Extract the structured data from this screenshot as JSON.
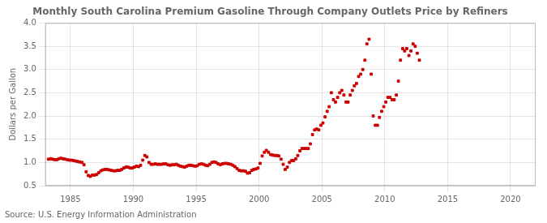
{
  "chart_data": {
    "type": "scatter",
    "title": "Monthly South Carolina Premium Gasoline Through Company Outlets Price by Refiners",
    "ylabel": "Dollars per Gallon",
    "annotation": "Source: U.S. Energy Information Administration",
    "xlim": [
      1983,
      2022
    ],
    "ylim": [
      0.5,
      4.0
    ],
    "xticks": [
      1985,
      1990,
      1995,
      2000,
      2005,
      2010,
      2015,
      2020
    ],
    "yticks": [
      0.5,
      {
        "value": 1.0,
        "label": "1.0"
      },
      1.5,
      {
        "value": 2.0,
        "label": "2.0"
      },
      2.5,
      {
        "value": 3.0,
        "label": "3.0"
      },
      3.5,
      {
        "value": 4.0,
        "label": "4.0"
      }
    ],
    "color": "#cc0000",
    "marker": "square",
    "grid": true,
    "x": [
      1983.25,
      1983.42,
      1983.58,
      1983.75,
      1983.92,
      1984.08,
      1984.25,
      1984.42,
      1984.58,
      1984.75,
      1984.92,
      1985.08,
      1985.25,
      1985.42,
      1985.58,
      1985.75,
      1985.92,
      1986.08,
      1986.25,
      1986.42,
      1986.58,
      1986.75,
      1986.92,
      1987.08,
      1987.25,
      1987.42,
      1987.58,
      1987.75,
      1987.92,
      1988.08,
      1988.25,
      1988.42,
      1988.58,
      1988.75,
      1988.92,
      1989.08,
      1989.25,
      1989.42,
      1989.58,
      1989.75,
      1989.92,
      1990.08,
      1990.25,
      1990.42,
      1990.58,
      1990.75,
      1990.92,
      1991.08,
      1991.25,
      1991.42,
      1991.58,
      1991.75,
      1991.92,
      1992.08,
      1992.25,
      1992.42,
      1992.58,
      1992.75,
      1992.92,
      1993.08,
      1993.25,
      1993.42,
      1993.58,
      1993.75,
      1993.92,
      1994.08,
      1994.25,
      1994.42,
      1994.58,
      1994.75,
      1994.92,
      1995.08,
      1995.25,
      1995.42,
      1995.58,
      1995.75,
      1995.92,
      1996.08,
      1996.25,
      1996.42,
      1996.58,
      1996.75,
      1996.92,
      1997.08,
      1997.25,
      1997.42,
      1997.58,
      1997.75,
      1997.92,
      1998.08,
      1998.25,
      1998.42,
      1998.58,
      1998.75,
      1998.92,
      1999.08,
      1999.25,
      1999.42,
      1999.58,
      1999.75,
      1999.92,
      2000.08,
      2000.25,
      2000.42,
      2000.58,
      2000.75,
      2000.92,
      2001.08,
      2001.25,
      2001.42,
      2001.58,
      2001.75,
      2001.92,
      2002.08,
      2002.25,
      2002.42,
      2002.58,
      2002.75,
      2002.92,
      2003.08,
      2003.25,
      2003.42,
      2003.58,
      2003.75,
      2003.92,
      2004.08,
      2004.25,
      2004.42,
      2004.58,
      2004.75,
      2004.92,
      2005.08,
      2005.25,
      2005.42,
      2005.58,
      2005.75,
      2005.92,
      2006.08,
      2006.25,
      2006.42,
      2006.58,
      2006.75,
      2006.92,
      2007.08,
      2007.25,
      2007.42,
      2007.58,
      2007.75,
      2007.92,
      2008.08,
      2008.25,
      2008.42,
      2008.58,
      2008.75,
      2008.92,
      2009.08,
      2009.25,
      2009.42,
      2009.58,
      2009.75,
      2009.92,
      2010.08,
      2010.25,
      2010.42,
      2010.58,
      2010.75,
      2010.92,
      2011.08,
      2011.25,
      2011.42,
      2011.58,
      2011.75,
      2011.92,
      2012.08,
      2012.25,
      2012.42,
      2012.58,
      2012.75
    ],
    "values": [
      1.07,
      1.08,
      1.07,
      1.06,
      1.06,
      1.08,
      1.09,
      1.08,
      1.07,
      1.06,
      1.05,
      1.05,
      1.04,
      1.03,
      1.02,
      1.01,
      1.0,
      0.95,
      0.8,
      0.72,
      0.7,
      0.73,
      0.73,
      0.74,
      0.78,
      0.82,
      0.84,
      0.85,
      0.85,
      0.84,
      0.83,
      0.82,
      0.82,
      0.83,
      0.83,
      0.85,
      0.88,
      0.9,
      0.9,
      0.88,
      0.88,
      0.9,
      0.92,
      0.91,
      0.94,
      1.05,
      1.15,
      1.12,
      1.0,
      0.96,
      0.96,
      0.97,
      0.96,
      0.96,
      0.96,
      0.97,
      0.97,
      0.95,
      0.94,
      0.95,
      0.95,
      0.96,
      0.94,
      0.92,
      0.91,
      0.9,
      0.92,
      0.94,
      0.94,
      0.93,
      0.92,
      0.93,
      0.96,
      0.97,
      0.96,
      0.94,
      0.93,
      0.96,
      1.0,
      1.01,
      1.0,
      0.97,
      0.95,
      0.97,
      0.98,
      0.98,
      0.97,
      0.96,
      0.94,
      0.91,
      0.87,
      0.83,
      0.82,
      0.82,
      0.81,
      0.77,
      0.78,
      0.83,
      0.85,
      0.86,
      0.88,
      0.98,
      1.14,
      1.22,
      1.26,
      1.22,
      1.17,
      1.16,
      1.15,
      1.15,
      1.14,
      1.07,
      0.96,
      0.85,
      0.9,
      1.0,
      1.04,
      1.04,
      1.08,
      1.15,
      1.25,
      1.3,
      1.3,
      1.3,
      1.3,
      1.4,
      1.6,
      1.7,
      1.72,
      1.7,
      1.8,
      1.85,
      1.98,
      2.1,
      2.2,
      2.5,
      2.35,
      2.3,
      2.4,
      2.5,
      2.55,
      2.45,
      2.3,
      2.3,
      2.45,
      2.55,
      2.65,
      2.7,
      2.85,
      2.9,
      3.0,
      3.2,
      3.55,
      3.65,
      2.9,
      2.0,
      1.8,
      1.8,
      1.97,
      2.1,
      2.2,
      2.3,
      2.4,
      2.4,
      2.35,
      2.35,
      2.45,
      2.75,
      3.2,
      3.45,
      3.4,
      3.45,
      3.3,
      3.4,
      3.55,
      3.5,
      3.35,
      3.2
    ]
  }
}
